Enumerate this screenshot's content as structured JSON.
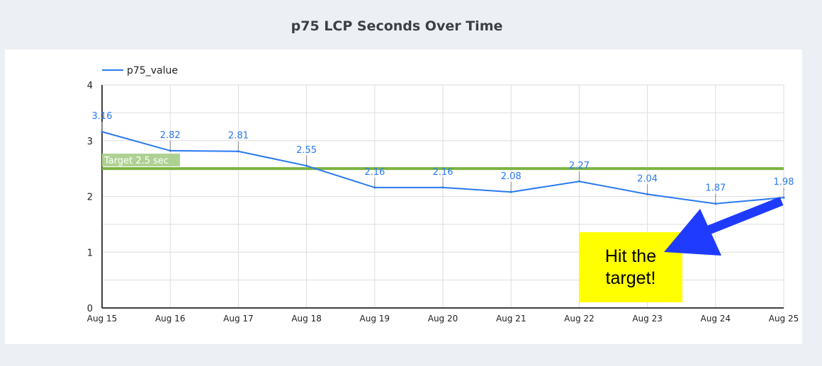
{
  "chart_data": {
    "type": "line",
    "title": "p75 LCP Seconds Over Time",
    "categories": [
      "Aug 15",
      "Aug 16",
      "Aug 17",
      "Aug 18",
      "Aug 19",
      "Aug 20",
      "Aug 21",
      "Aug 22",
      "Aug 23",
      "Aug 24",
      "Aug 25"
    ],
    "series": [
      {
        "name": "p75_value",
        "values": [
          3.16,
          2.82,
          2.81,
          2.55,
          2.16,
          2.16,
          2.08,
          2.27,
          2.04,
          1.87,
          1.98
        ],
        "color": "#2979ef"
      }
    ],
    "data_labels": [
      "3.16",
      "2.82",
      "2.81",
      "2.55",
      "2.16",
      "2.16",
      "2.08",
      "2.27",
      "2.04",
      "1.87",
      "1.98"
    ],
    "ylim": [
      0,
      4
    ],
    "yticks": [
      "0",
      "1",
      "2",
      "3",
      "4"
    ],
    "grid": true,
    "legend": "top-left",
    "reference_line": {
      "value": 2.5,
      "label": "Target 2.5 sec",
      "color": "#7cb342"
    },
    "annotation": {
      "text_line1": "Hit the",
      "text_line2": "target!",
      "box_color": "#ffff00",
      "arrow_color": "#1f3bff"
    }
  }
}
